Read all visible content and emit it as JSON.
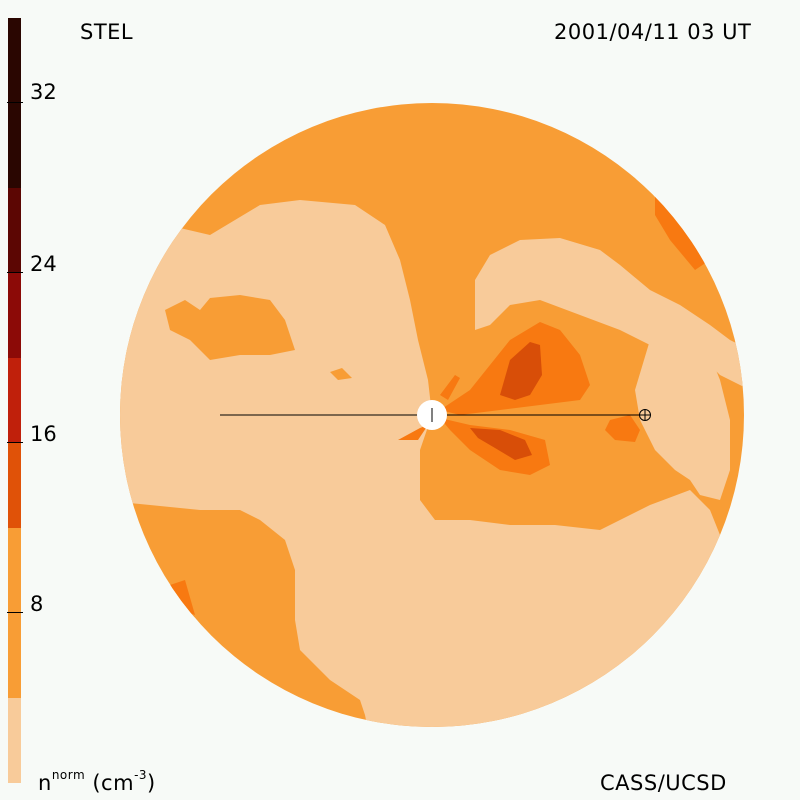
{
  "header": {
    "source": "STEL",
    "datetime": "2001/04/11 03 UT"
  },
  "footer": {
    "credit": "CASS/UCSD",
    "units_base": "n",
    "units_sup": "norm",
    "units_rest": "(cm",
    "units_exp": "-3",
    "units_close": ")"
  },
  "colorbar": {
    "ticks": [
      "32",
      "24",
      "16",
      "8"
    ],
    "colors": [
      "#f8cb9a",
      "#f89d35",
      "#f87911",
      "#e05208",
      "#c0200b",
      "#8c0a07",
      "#5c0603",
      "#2a0601"
    ]
  },
  "map": {
    "fills": {
      "background": "#f89d35",
      "light": "#f8cb9a",
      "medium": "#f87911",
      "dark": "#d84e08"
    }
  }
}
